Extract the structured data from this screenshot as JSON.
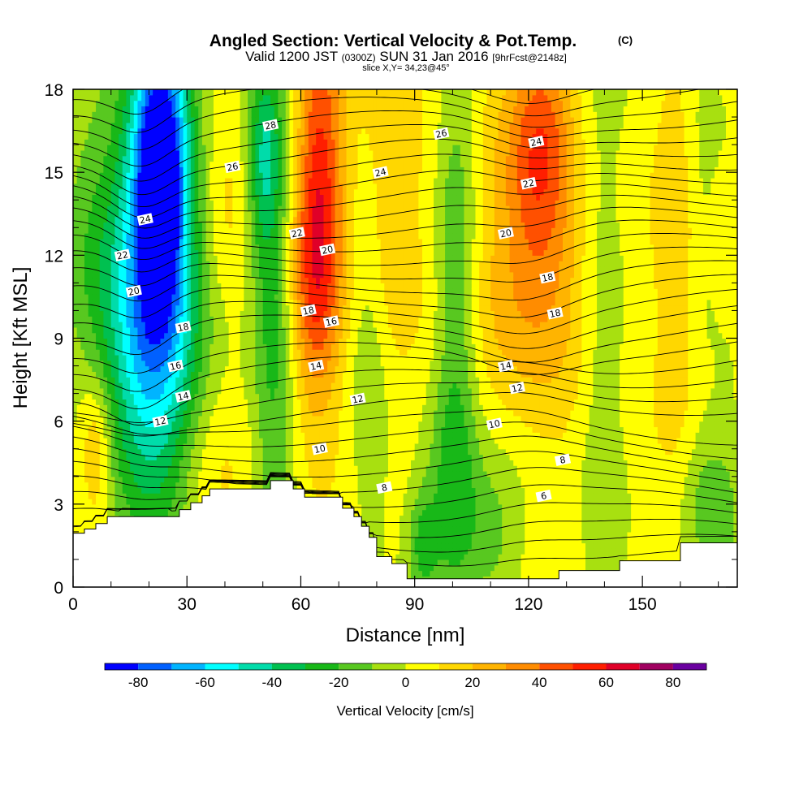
{
  "title": {
    "main": "Angled Section: Vertical Velocity & Pot.Temp.",
    "units": "(C)",
    "valid_prefix": "Valid 1200 JST",
    "valid_utc": "(0300Z)",
    "valid_date": "SUN 31 Jan 2016",
    "forecast": "[9hrFcst@2148z]",
    "slice": "slice X,Y= 34,23@45°"
  },
  "chart_data": {
    "type": "heatmap",
    "xlabel": "Distance [nm]",
    "ylabel": "Height [Kft MSL]",
    "xlim": [
      0,
      175
    ],
    "ylim": [
      0,
      18
    ],
    "x_ticks": [
      0,
      30,
      60,
      90,
      120,
      150
    ],
    "y_ticks": [
      0,
      3,
      6,
      9,
      12,
      15,
      18
    ],
    "colorbar": {
      "title": "Vertical Velocity [cm/s]",
      "ticks": [
        -80,
        -60,
        -40,
        -20,
        0,
        20,
        40,
        60,
        80
      ],
      "levels": [
        -90,
        -80,
        -70,
        -60,
        -50,
        -40,
        -30,
        -20,
        -10,
        0,
        10,
        20,
        30,
        40,
        50,
        60,
        70,
        80,
        90
      ],
      "colors": [
        "#0000ff",
        "#0060ff",
        "#00b4ff",
        "#00ffff",
        "#00dcaa",
        "#00c050",
        "#18b818",
        "#58c820",
        "#a8e010",
        "#ffff00",
        "#ffd700",
        "#ffb400",
        "#ff8c00",
        "#ff5000",
        "#ff1e00",
        "#e00028",
        "#a00060",
        "#6a00a0"
      ]
    },
    "vertical_velocity_features": [
      {
        "x": 23,
        "z": 15.5,
        "sx": 5,
        "sz": 3.5,
        "w": -75
      },
      {
        "x": 22,
        "z": 11,
        "sx": 9,
        "sz": 6,
        "w": -50
      },
      {
        "x": 18,
        "z": 8.5,
        "sx": 10,
        "sz": 4,
        "w": -25
      },
      {
        "x": 53,
        "z": 10,
        "sx": 4,
        "sz": 8,
        "w": -25
      },
      {
        "x": 50,
        "z": 15.5,
        "sx": 3,
        "sz": 2.5,
        "w": -30
      },
      {
        "x": 65,
        "z": 15,
        "sx": 4.5,
        "sz": 4.5,
        "w": 45
      },
      {
        "x": 63,
        "z": 10.5,
        "sx": 5,
        "sz": 3,
        "w": 25
      },
      {
        "x": 78,
        "z": 9,
        "sx": 4,
        "sz": 5,
        "w": -15
      },
      {
        "x": 101,
        "z": 11,
        "sx": 4,
        "sz": 7,
        "w": -25
      },
      {
        "x": 99,
        "z": 3,
        "sx": 5,
        "sz": 3,
        "w": -20
      },
      {
        "x": 92,
        "z": 1.5,
        "sx": 3,
        "sz": 1.5,
        "w": -25
      },
      {
        "x": 123,
        "z": 16,
        "sx": 6,
        "sz": 3,
        "w": 40
      },
      {
        "x": 122,
        "z": 10.5,
        "sx": 11,
        "sz": 3,
        "w": 20
      },
      {
        "x": 112,
        "z": 14,
        "sx": 6,
        "sz": 5,
        "w": 10
      },
      {
        "x": 110,
        "z": 2,
        "sx": 6,
        "sz": 2,
        "w": -15
      },
      {
        "x": 6,
        "z": 5,
        "sx": 3,
        "sz": 1.8,
        "w": 25
      },
      {
        "x": 5,
        "z": 13.5,
        "sx": 6,
        "sz": 4,
        "w": -15
      },
      {
        "x": 139,
        "z": 8,
        "sx": 4,
        "sz": 8,
        "w": -10
      },
      {
        "x": 160,
        "z": 12,
        "sx": 5,
        "sz": 6,
        "w": 12
      },
      {
        "x": 168,
        "z": 3,
        "sx": 6,
        "sz": 2,
        "w": -20
      },
      {
        "x": 165,
        "z": 14,
        "sx": 3,
        "sz": 5,
        "w": -10
      },
      {
        "x": 35,
        "z": 4,
        "sx": 8,
        "sz": 2,
        "w": 10
      },
      {
        "x": 40,
        "z": 14,
        "sx": 5,
        "sz": 3,
        "w": 10
      },
      {
        "x": 83,
        "z": 14,
        "sx": 6,
        "sz": 5,
        "w": 20
      }
    ],
    "potential_temperature_labels": [
      {
        "x": 52,
        "z": 16.7,
        "value": "28"
      },
      {
        "x": 42,
        "z": 15.2,
        "value": "26"
      },
      {
        "x": 97,
        "z": 16.4,
        "value": "26"
      },
      {
        "x": 122,
        "z": 16.1,
        "value": "24"
      },
      {
        "x": 81,
        "z": 15.0,
        "value": "24"
      },
      {
        "x": 19,
        "z": 13.3,
        "value": "24"
      },
      {
        "x": 120,
        "z": 14.6,
        "value": "22"
      },
      {
        "x": 59,
        "z": 12.8,
        "value": "22"
      },
      {
        "x": 13,
        "z": 12.0,
        "value": "22"
      },
      {
        "x": 114,
        "z": 12.8,
        "value": "20"
      },
      {
        "x": 67,
        "z": 12.2,
        "value": "20"
      },
      {
        "x": 16,
        "z": 10.7,
        "value": "20"
      },
      {
        "x": 125,
        "z": 11.2,
        "value": "18"
      },
      {
        "x": 127,
        "z": 9.9,
        "value": "18"
      },
      {
        "x": 62,
        "z": 10.0,
        "value": "18"
      },
      {
        "x": 29,
        "z": 9.4,
        "value": "18"
      },
      {
        "x": 68,
        "z": 9.6,
        "value": "16"
      },
      {
        "x": 27,
        "z": 8.0,
        "value": "16"
      },
      {
        "x": 114,
        "z": 8.0,
        "value": "14"
      },
      {
        "x": 64,
        "z": 8.0,
        "value": "14"
      },
      {
        "x": 29,
        "z": 6.9,
        "value": "14"
      },
      {
        "x": 117,
        "z": 7.2,
        "value": "12"
      },
      {
        "x": 75,
        "z": 6.8,
        "value": "12"
      },
      {
        "x": 23,
        "z": 6.0,
        "value": "12"
      },
      {
        "x": 111,
        "z": 5.9,
        "value": "10"
      },
      {
        "x": 65,
        "z": 5.0,
        "value": "10"
      },
      {
        "x": 129,
        "z": 4.6,
        "value": "8"
      },
      {
        "x": 82,
        "z": 3.6,
        "value": "8"
      },
      {
        "x": 124,
        "z": 3.3,
        "value": "6"
      }
    ],
    "terrain_profile": [
      [
        0,
        1.95
      ],
      [
        3,
        1.95
      ],
      [
        3,
        2.1
      ],
      [
        6,
        2.1
      ],
      [
        6,
        2.3
      ],
      [
        9,
        2.3
      ],
      [
        9,
        2.55
      ],
      [
        28,
        2.55
      ],
      [
        28,
        2.8
      ],
      [
        31,
        2.8
      ],
      [
        31,
        3.05
      ],
      [
        34,
        3.05
      ],
      [
        34,
        3.3
      ],
      [
        36,
        3.3
      ],
      [
        36,
        3.55
      ],
      [
        52,
        3.55
      ],
      [
        52,
        3.85
      ],
      [
        58,
        3.85
      ],
      [
        58,
        3.55
      ],
      [
        61,
        3.55
      ],
      [
        61,
        3.25
      ],
      [
        71,
        3.25
      ],
      [
        71,
        2.85
      ],
      [
        74,
        2.85
      ],
      [
        74,
        2.55
      ],
      [
        76,
        2.55
      ],
      [
        76,
        2.2
      ],
      [
        78,
        2.2
      ],
      [
        78,
        1.8
      ],
      [
        80,
        1.8
      ],
      [
        80,
        1.1
      ],
      [
        84,
        1.1
      ],
      [
        84,
        0.85
      ],
      [
        88,
        0.85
      ],
      [
        88,
        0.3
      ],
      [
        128,
        0.3
      ],
      [
        128,
        0.6
      ],
      [
        144,
        0.6
      ],
      [
        144,
        0.95
      ],
      [
        160,
        0.95
      ],
      [
        160,
        1.6
      ],
      [
        175,
        1.6
      ]
    ]
  }
}
